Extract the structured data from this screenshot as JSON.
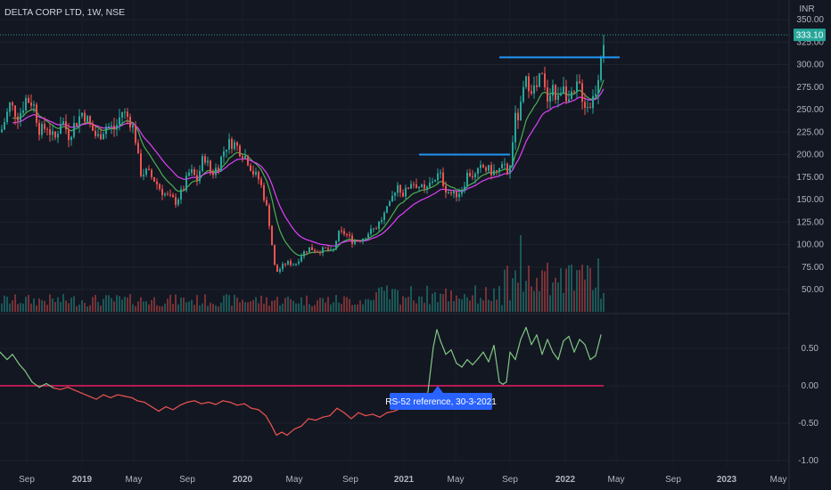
{
  "chart_data": {
    "title": "DELTA CORP LTD, 1W, NSE",
    "currency": "INR",
    "type": "candlestick",
    "last_price": "333.10",
    "price_axis": {
      "min": 25,
      "max": 350,
      "ticks": [
        "350.00",
        "325.00",
        "300.00",
        "275.00",
        "250.00",
        "225.00",
        "200.00",
        "175.00",
        "150.00",
        "125.00",
        "100.00",
        "75.00",
        "50.00"
      ]
    },
    "x_axis_labels": [
      {
        "label": "Sep",
        "bold": false
      },
      {
        "label": "2019",
        "bold": true
      },
      {
        "label": "May",
        "bold": false
      },
      {
        "label": "Sep",
        "bold": false
      },
      {
        "label": "2020",
        "bold": true
      },
      {
        "label": "May",
        "bold": false
      },
      {
        "label": "Sep",
        "bold": false
      },
      {
        "label": "2021",
        "bold": true
      },
      {
        "label": "May",
        "bold": false
      },
      {
        "label": "Sep",
        "bold": false
      },
      {
        "label": "2022",
        "bold": true
      },
      {
        "label": "May",
        "bold": false
      },
      {
        "label": "Sep",
        "bold": false
      },
      {
        "label": "2023",
        "bold": true
      },
      {
        "label": "May",
        "bold": false
      }
    ],
    "price_path": [
      [
        0,
        225
      ],
      [
        10,
        255
      ],
      [
        20,
        243
      ],
      [
        28,
        262
      ],
      [
        36,
        258
      ],
      [
        44,
        225
      ],
      [
        52,
        232
      ],
      [
        60,
        215
      ],
      [
        68,
        240
      ],
      [
        76,
        222
      ],
      [
        84,
        236
      ],
      [
        92,
        248
      ],
      [
        100,
        232
      ],
      [
        108,
        218
      ],
      [
        118,
        232
      ],
      [
        128,
        228
      ],
      [
        136,
        248
      ],
      [
        144,
        240
      ],
      [
        150,
        225
      ],
      [
        156,
        180
      ],
      [
        164,
        180
      ],
      [
        172,
        172
      ],
      [
        180,
        160
      ],
      [
        188,
        152
      ],
      [
        196,
        148
      ],
      [
        204,
        160
      ],
      [
        212,
        182
      ],
      [
        220,
        172
      ],
      [
        228,
        200
      ],
      [
        236,
        178
      ],
      [
        244,
        188
      ],
      [
        252,
        210
      ],
      [
        260,
        214
      ],
      [
        268,
        205
      ],
      [
        276,
        196
      ],
      [
        284,
        178
      ],
      [
        290,
        172
      ],
      [
        296,
        150
      ],
      [
        300,
        132
      ],
      [
        304,
        100
      ],
      [
        308,
        68
      ],
      [
        312,
        72
      ],
      [
        320,
        80
      ],
      [
        330,
        78
      ],
      [
        338,
        90
      ],
      [
        346,
        96
      ],
      [
        356,
        93
      ],
      [
        366,
        95
      ],
      [
        372,
        90
      ],
      [
        378,
        112
      ],
      [
        386,
        113
      ],
      [
        394,
        104
      ],
      [
        404,
        106
      ],
      [
        412,
        113
      ],
      [
        420,
        118
      ],
      [
        428,
        130
      ],
      [
        436,
        143
      ],
      [
        444,
        168
      ],
      [
        452,
        155
      ],
      [
        460,
        170
      ],
      [
        468,
        166
      ],
      [
        476,
        158
      ],
      [
        484,
        172
      ],
      [
        492,
        178
      ],
      [
        500,
        160
      ],
      [
        508,
        155
      ],
      [
        516,
        160
      ],
      [
        524,
        180
      ],
      [
        532,
        176
      ],
      [
        540,
        186
      ],
      [
        548,
        182
      ],
      [
        556,
        180
      ],
      [
        564,
        186
      ],
      [
        570,
        176
      ],
      [
        576,
        238
      ],
      [
        582,
        245
      ],
      [
        586,
        270
      ],
      [
        590,
        282
      ],
      [
        594,
        278
      ],
      [
        600,
        270
      ],
      [
        606,
        290
      ],
      [
        612,
        260
      ],
      [
        618,
        280
      ],
      [
        624,
        255
      ],
      [
        630,
        285
      ],
      [
        636,
        260
      ],
      [
        642,
        262
      ],
      [
        648,
        280
      ],
      [
        654,
        258
      ],
      [
        660,
        254
      ],
      [
        666,
        268
      ],
      [
        670,
        290
      ],
      [
        674,
        325
      ],
      [
        678,
        333
      ]
    ],
    "reference_levels": [
      {
        "x0": 470,
        "x1": 572,
        "price": 200
      },
      {
        "x0": 560,
        "x1": 695,
        "price": 308
      }
    ],
    "rs_panel": {
      "label": "RS-52 reference, 30-3-2021",
      "ticks": [
        "0.50",
        "0.00",
        "-0.50",
        "-1.00"
      ],
      "range": [
        -1.0,
        0.9
      ],
      "zero_line_color": "#e91e63",
      "positive_color": "#81c784",
      "negative_color": "#ef5350",
      "series": [
        [
          0,
          0.45
        ],
        [
          8,
          0.35
        ],
        [
          14,
          0.42
        ],
        [
          22,
          0.28
        ],
        [
          28,
          0.2
        ],
        [
          36,
          0.05
        ],
        [
          44,
          -0.02
        ],
        [
          52,
          0.03
        ],
        [
          60,
          -0.03
        ],
        [
          68,
          -0.05
        ],
        [
          76,
          -0.02
        ],
        [
          84,
          -0.06
        ],
        [
          92,
          -0.1
        ],
        [
          100,
          -0.14
        ],
        [
          108,
          -0.18
        ],
        [
          116,
          -0.12
        ],
        [
          124,
          -0.16
        ],
        [
          132,
          -0.12
        ],
        [
          140,
          -0.14
        ],
        [
          148,
          -0.16
        ],
        [
          154,
          -0.2
        ],
        [
          162,
          -0.22
        ],
        [
          170,
          -0.28
        ],
        [
          178,
          -0.34
        ],
        [
          186,
          -0.28
        ],
        [
          194,
          -0.32
        ],
        [
          202,
          -0.26
        ],
        [
          210,
          -0.22
        ],
        [
          218,
          -0.2
        ],
        [
          226,
          -0.24
        ],
        [
          234,
          -0.22
        ],
        [
          242,
          -0.25
        ],
        [
          250,
          -0.2
        ],
        [
          258,
          -0.22
        ],
        [
          266,
          -0.26
        ],
        [
          274,
          -0.24
        ],
        [
          282,
          -0.3
        ],
        [
          290,
          -0.32
        ],
        [
          298,
          -0.4
        ],
        [
          304,
          -0.52
        ],
        [
          310,
          -0.66
        ],
        [
          316,
          -0.62
        ],
        [
          322,
          -0.66
        ],
        [
          330,
          -0.58
        ],
        [
          338,
          -0.54
        ],
        [
          346,
          -0.44
        ],
        [
          354,
          -0.46
        ],
        [
          362,
          -0.42
        ],
        [
          370,
          -0.4
        ],
        [
          378,
          -0.3
        ],
        [
          386,
          -0.36
        ],
        [
          394,
          -0.44
        ],
        [
          402,
          -0.36
        ],
        [
          410,
          -0.4
        ],
        [
          418,
          -0.38
        ],
        [
          426,
          -0.42
        ],
        [
          434,
          -0.36
        ],
        [
          442,
          -0.34
        ],
        [
          450,
          -0.3
        ],
        [
          458,
          -0.28
        ],
        [
          466,
          -0.18
        ],
        [
          474,
          -0.2
        ],
        [
          480,
          -0.08
        ],
        [
          486,
          0.52
        ],
        [
          490,
          0.75
        ],
        [
          494,
          0.6
        ],
        [
          500,
          0.42
        ],
        [
          506,
          0.48
        ],
        [
          512,
          0.3
        ],
        [
          518,
          0.25
        ],
        [
          524,
          0.35
        ],
        [
          530,
          0.28
        ],
        [
          536,
          0.36
        ],
        [
          542,
          0.45
        ],
        [
          548,
          0.32
        ],
        [
          554,
          0.54
        ],
        [
          560,
          0.05
        ],
        [
          564,
          0.02
        ],
        [
          568,
          0.05
        ],
        [
          572,
          0.45
        ],
        [
          578,
          0.35
        ],
        [
          584,
          0.62
        ],
        [
          590,
          0.78
        ],
        [
          596,
          0.55
        ],
        [
          602,
          0.68
        ],
        [
          608,
          0.42
        ],
        [
          614,
          0.62
        ],
        [
          620,
          0.45
        ],
        [
          626,
          0.35
        ],
        [
          632,
          0.6
        ],
        [
          638,
          0.66
        ],
        [
          644,
          0.45
        ],
        [
          650,
          0.62
        ],
        [
          656,
          0.55
        ],
        [
          662,
          0.35
        ],
        [
          668,
          0.4
        ],
        [
          674,
          0.68
        ]
      ]
    }
  },
  "colors": {
    "background": "#131722",
    "up": "#26a69a",
    "down": "#ef5350",
    "ema_fast": "#4caf50",
    "ema_slow": "#e040fb",
    "level_line": "#2196f3",
    "price_label_bg": "#26a69a"
  }
}
